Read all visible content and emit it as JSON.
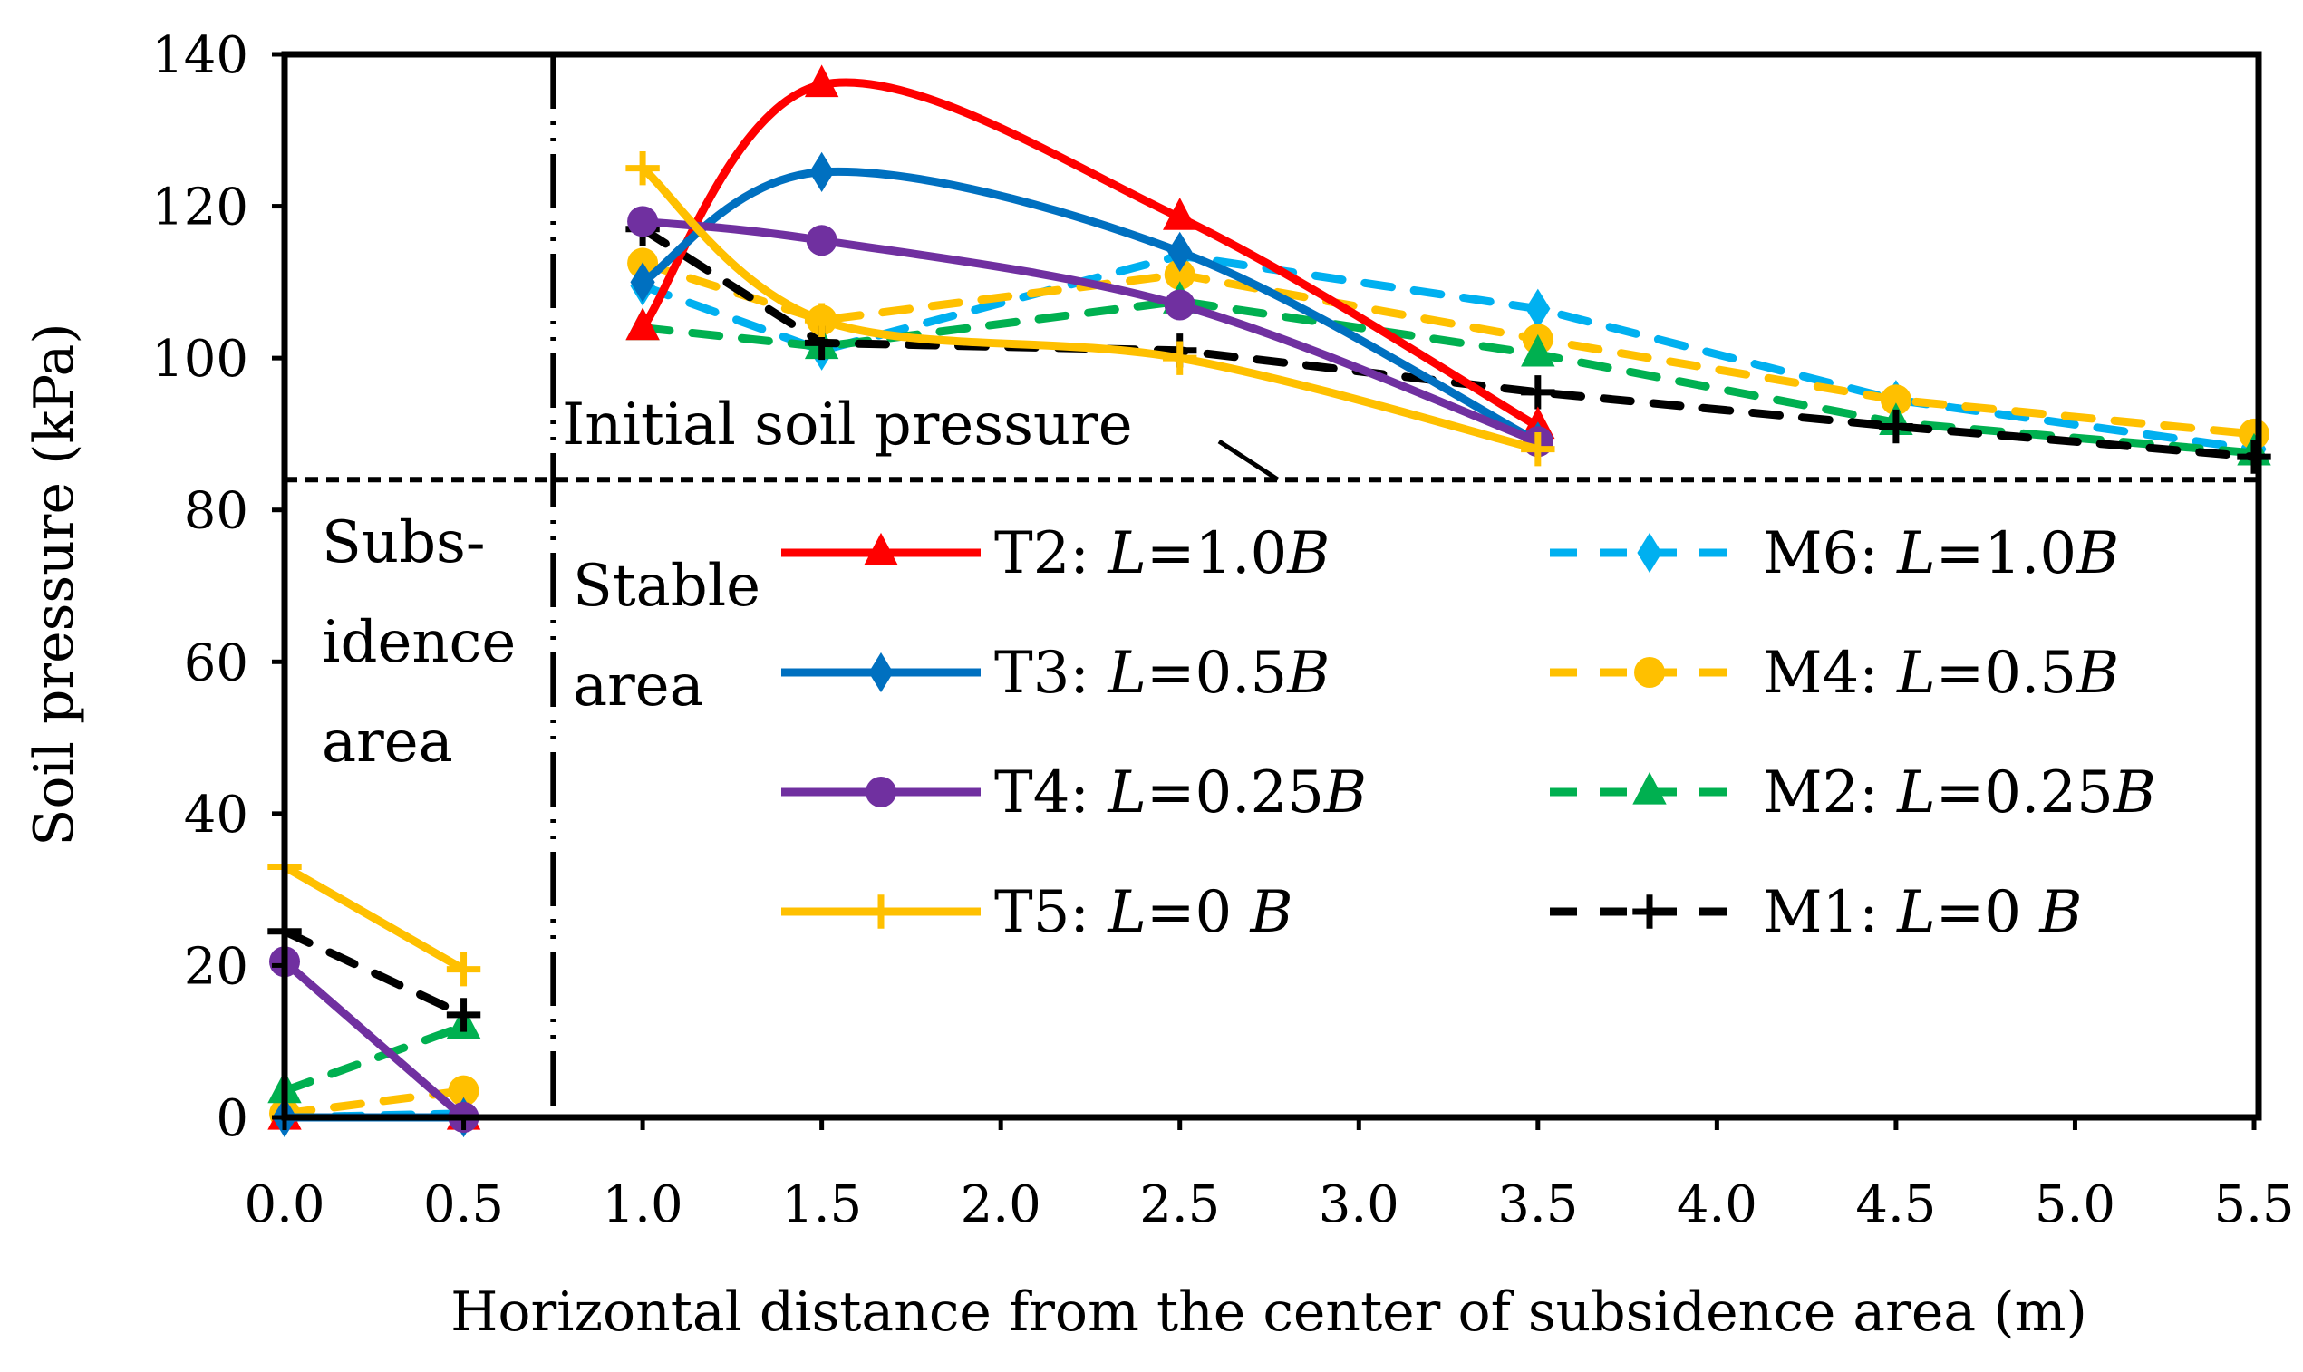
{
  "chart_data": {
    "type": "line",
    "xlabel": "Horizontal distance from the center of subsidence area (m)",
    "ylabel": "Soil pressure (kPa)",
    "xlim": [
      0,
      5.5
    ],
    "ylim": [
      0,
      140
    ],
    "xticks": [
      "0.0",
      "0.5",
      "1.0",
      "1.5",
      "2.0",
      "2.5",
      "3.0",
      "3.5",
      "4.0",
      "4.5",
      "5.0",
      "5.5"
    ],
    "yticks": [
      "0",
      "20",
      "40",
      "60",
      "80",
      "100",
      "120",
      "140"
    ],
    "initial_pressure": {
      "value": 84,
      "label": "Initial soil pressure"
    },
    "divider_x": 0.75,
    "regions": {
      "subsidence": [
        "Subs-",
        "idence",
        "area"
      ],
      "stable": [
        "Stable",
        "area"
      ]
    },
    "series": [
      {
        "name": "T2",
        "prefix": "T2: ",
        "L": "1.0",
        "color": "#ff0000",
        "dash": false,
        "marker": "triangle",
        "sub": [
          [
            0,
            0
          ],
          [
            0.5,
            0
          ]
        ],
        "stable": [
          [
            1.0,
            104
          ],
          [
            1.5,
            136
          ],
          [
            2.5,
            118.5
          ],
          [
            3.5,
            91
          ]
        ]
      },
      {
        "name": "T3",
        "prefix": "T3: ",
        "L": "0.5",
        "color": "#0070c0",
        "dash": false,
        "marker": "diamond",
        "sub": [
          [
            0,
            0
          ],
          [
            0.5,
            0
          ]
        ],
        "stable": [
          [
            1.0,
            110
          ],
          [
            1.5,
            124.5
          ],
          [
            2.5,
            114
          ],
          [
            3.5,
            89
          ]
        ]
      },
      {
        "name": "T4",
        "prefix": "T4: ",
        "L": "0.25",
        "color": "#7030a0",
        "dash": false,
        "marker": "circle",
        "sub": [
          [
            0,
            20.5
          ],
          [
            0.5,
            0
          ]
        ],
        "stable": [
          [
            1.0,
            118
          ],
          [
            1.5,
            115.5
          ],
          [
            2.5,
            107
          ],
          [
            3.5,
            89
          ]
        ]
      },
      {
        "name": "T5",
        "prefix": "T5: ",
        "L": "0 ",
        "color": "#ffc000",
        "dash": false,
        "marker": "plus",
        "sub": [
          [
            0,
            33
          ],
          [
            0.5,
            19.5
          ]
        ],
        "stable": [
          [
            1.0,
            125
          ],
          [
            1.5,
            105
          ],
          [
            2.5,
            100
          ],
          [
            3.5,
            88
          ]
        ]
      },
      {
        "name": "M6",
        "prefix": "M6: ",
        "L": "1.0",
        "color": "#00b0f0",
        "dash": true,
        "marker": "diamond",
        "sub": [
          [
            0,
            0
          ],
          [
            0.5,
            0.5
          ]
        ],
        "stable": [
          [
            1.0,
            109.5
          ],
          [
            1.5,
            101
          ],
          [
            2.5,
            113.5
          ],
          [
            3.5,
            106.5
          ],
          [
            4.5,
            94.5
          ],
          [
            5.5,
            88
          ]
        ]
      },
      {
        "name": "M4",
        "prefix": "M4: ",
        "L": "0.5",
        "color": "#ffc000",
        "dash": true,
        "marker": "circle",
        "sub": [
          [
            0,
            0.5
          ],
          [
            0.5,
            3.5
          ]
        ],
        "stable": [
          [
            1.0,
            112.5
          ],
          [
            1.5,
            105
          ],
          [
            2.5,
            111
          ],
          [
            3.5,
            102.5
          ],
          [
            4.5,
            94.5
          ],
          [
            5.5,
            90
          ]
        ]
      },
      {
        "name": "M2",
        "prefix": "M2: ",
        "L": "0.25",
        "color": "#00b050",
        "dash": true,
        "marker": "triangle",
        "sub": [
          [
            0,
            3.5
          ],
          [
            0.5,
            12
          ]
        ],
        "stable": [
          [
            1.0,
            104
          ],
          [
            1.5,
            101.5
          ],
          [
            2.5,
            107.5
          ],
          [
            3.5,
            100.5
          ],
          [
            4.5,
            91.5
          ],
          [
            5.5,
            87.5
          ]
        ]
      },
      {
        "name": "M1",
        "prefix": "M1: ",
        "L": "0 ",
        "color": "#000000",
        "dash": true,
        "marker": "plus",
        "sub": [
          [
            0,
            24.5
          ],
          [
            0.5,
            13.5
          ]
        ],
        "stable": [
          [
            1.0,
            117
          ],
          [
            1.5,
            102
          ],
          [
            2.5,
            101
          ],
          [
            3.5,
            95.5
          ],
          [
            4.5,
            91
          ],
          [
            5.5,
            87
          ]
        ]
      }
    ],
    "legend": {
      "placement": "center-right",
      "L_symbol": "L",
      "eq": "=",
      "B_symbol": "B"
    }
  }
}
